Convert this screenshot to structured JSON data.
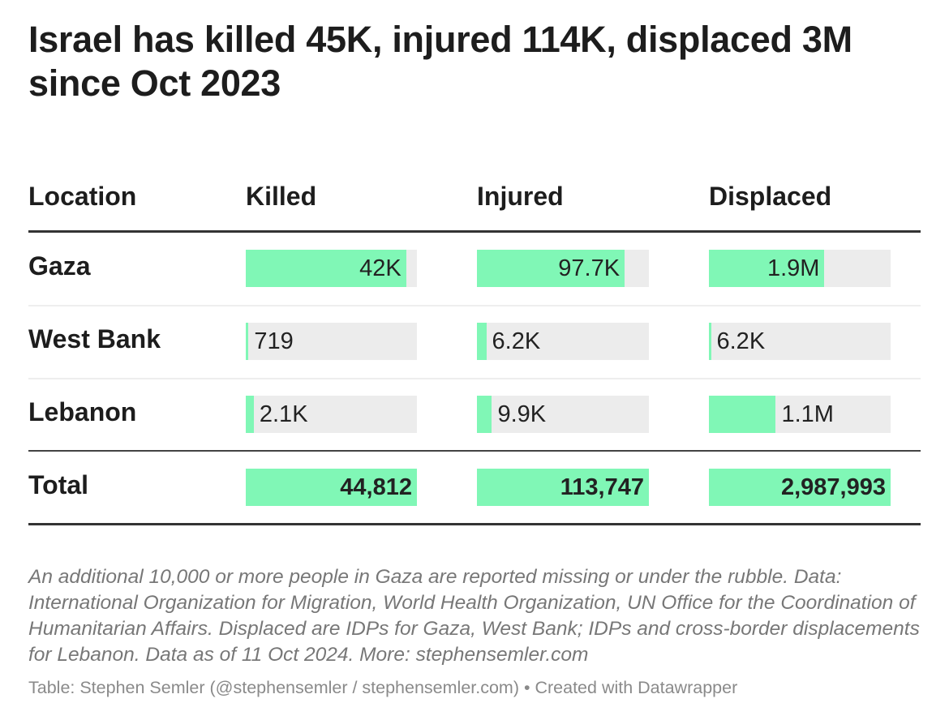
{
  "title": "Israel has killed 45K, injured 114K, displaced 3M since Oct 2023",
  "chart_data": {
    "type": "table",
    "columns": [
      "Location",
      "Killed",
      "Injured",
      "Displaced"
    ],
    "rows": [
      {
        "location": "Gaza",
        "values": [
          42000,
          97700,
          1900000
        ],
        "labels": [
          "42K",
          "97.7K",
          "1.9M"
        ]
      },
      {
        "location": "West Bank",
        "values": [
          719,
          6200,
          6200
        ],
        "labels": [
          "719",
          "6.2K",
          "6.2K"
        ]
      },
      {
        "location": "Lebanon",
        "values": [
          2100,
          9900,
          1100000
        ],
        "labels": [
          "2.1K",
          "9.9K",
          "1.1M"
        ]
      }
    ],
    "total": {
      "location": "Total",
      "values": [
        44812,
        113747,
        2987993
      ],
      "labels": [
        "44,812",
        "113,747",
        "2,987,993"
      ]
    },
    "bar_color": "#80f7b6"
  },
  "note": "An additional 10,000 or more people in Gaza are reported missing or under the rubble. Data: International Organization for Migration, World Health Organization, UN Office for the Coordination of Humanitarian Affairs. Displaced are IDPs for Gaza, West Bank; IDPs and cross-border displacements for Lebanon. Data as of 11 Oct 2024. More: stephensemler.com",
  "credit": "Table: Stephen Semler (@stephensemler / stephensemler.com) • Created with Datawrapper"
}
